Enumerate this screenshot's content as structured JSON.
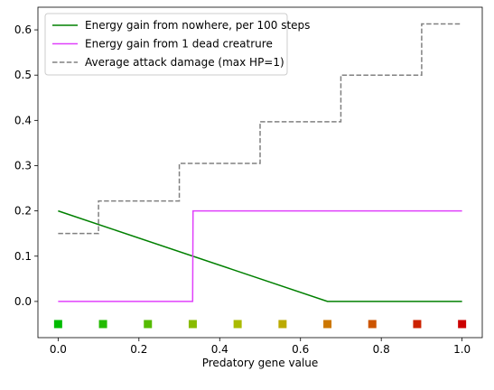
{
  "chart_data": {
    "type": "line",
    "title": "",
    "xlabel": "Predatory gene value",
    "ylabel": "",
    "xlim": [
      -0.05,
      1.05
    ],
    "ylim": [
      -0.08,
      0.65
    ],
    "xticks": [
      0.0,
      0.2,
      0.4,
      0.6,
      0.8,
      1.0
    ],
    "xtick_labels": [
      "0.0",
      "0.2",
      "0.4",
      "0.6",
      "0.8",
      "1.0"
    ],
    "yticks": [
      0.0,
      0.1,
      0.2,
      0.3,
      0.4,
      0.5,
      0.6
    ],
    "ytick_labels": [
      "0.0",
      "0.1",
      "0.2",
      "0.3",
      "0.4",
      "0.5",
      "0.6"
    ],
    "grid": false,
    "legend_position": "top-left",
    "series": [
      {
        "name": "Energy gain from nowhere, per 100 steps",
        "color": "#008000",
        "style": "solid",
        "x": [
          0.0,
          0.6667,
          1.0
        ],
        "y": [
          0.2,
          0.0,
          0.0
        ]
      },
      {
        "name": "Energy gain from 1 dead creatrure",
        "color": "#e040fb",
        "style": "solid",
        "x": [
          0.0,
          0.333,
          0.334,
          1.0
        ],
        "y": [
          0.0,
          0.0,
          0.2,
          0.2
        ]
      },
      {
        "name": "Average attack damage (max HP=1)",
        "color": "#808080",
        "style": "dashed",
        "step": true,
        "x": [
          0.0,
          0.1,
          0.1,
          0.3,
          0.3,
          0.5,
          0.5,
          0.7,
          0.7,
          0.9,
          0.9,
          1.0
        ],
        "y": [
          0.15,
          0.15,
          0.222,
          0.222,
          0.305,
          0.305,
          0.397,
          0.397,
          0.5,
          0.5,
          0.613,
          0.613
        ]
      }
    ],
    "markers": {
      "shape": "square",
      "y": -0.05,
      "x": [
        0.0,
        0.1111,
        0.2222,
        0.3333,
        0.4444,
        0.5556,
        0.6667,
        0.7778,
        0.8889,
        1.0
      ],
      "colors": [
        "#00bb00",
        "#22bb00",
        "#55bb00",
        "#88bb00",
        "#aabb00",
        "#bbaa00",
        "#cc7700",
        "#cc5500",
        "#cc2200",
        "#cc0000"
      ]
    }
  }
}
